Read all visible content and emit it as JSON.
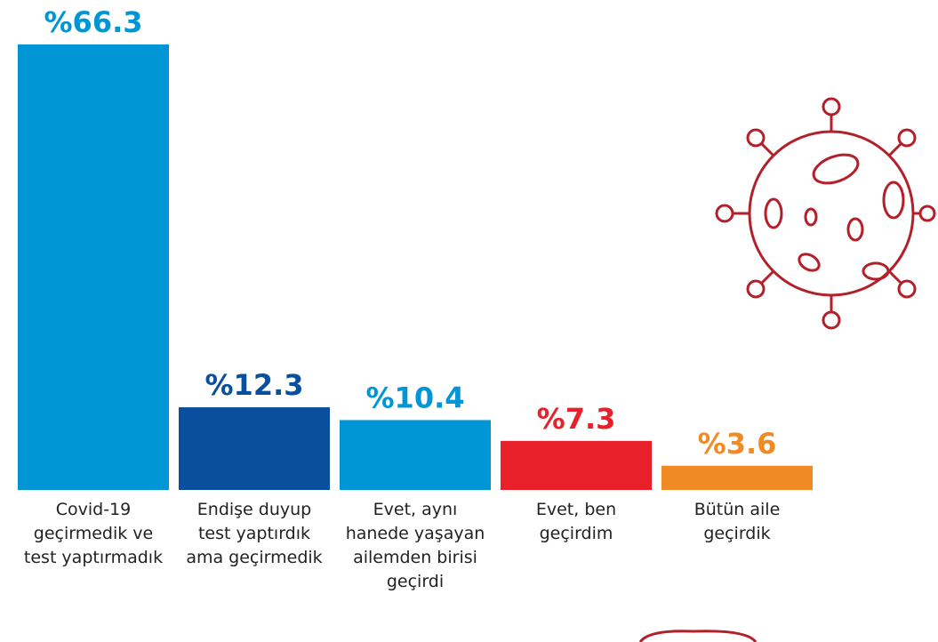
{
  "chart_data": {
    "type": "bar",
    "categories": [
      "Covid-19 geçirmedik ve test yaptırmadık",
      "Endişe duyup test yaptırdık ama geçirmedik",
      "Evet, aynı hanede yaşayan ailemden birisi geçirdi",
      "Evet, ben geçirdim",
      "Bütün aile geçirdik"
    ],
    "values": [
      66.3,
      12.3,
      10.4,
      7.3,
      3.6
    ],
    "value_labels": [
      "%66.3",
      "%12.3",
      "%10.4",
      "%7.3",
      "%3.6"
    ],
    "colors": [
      "#0096d6",
      "#0a4f9e",
      "#0096d6",
      "#e8202a",
      "#f08a24"
    ]
  }
}
